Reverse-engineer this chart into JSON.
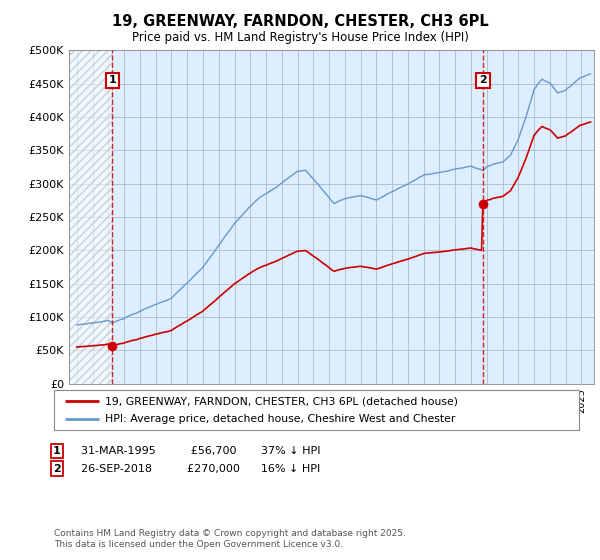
{
  "title": "19, GREENWAY, FARNDON, CHESTER, CH3 6PL",
  "subtitle": "Price paid vs. HM Land Registry's House Price Index (HPI)",
  "ylim": [
    0,
    500000
  ],
  "yticks": [
    0,
    50000,
    100000,
    150000,
    200000,
    250000,
    300000,
    350000,
    400000,
    450000,
    500000
  ],
  "ytick_labels": [
    "£0",
    "£50K",
    "£100K",
    "£150K",
    "£200K",
    "£250K",
    "£300K",
    "£350K",
    "£400K",
    "£450K",
    "£500K"
  ],
  "xlim_start": 1992.5,
  "xlim_end": 2025.8,
  "sale1_year": 1995.25,
  "sale1_price": 56700,
  "sale2_year": 2018.75,
  "sale2_price": 270000,
  "red_color": "#cc0000",
  "blue_color": "#6699cc",
  "bg_color": "#ddeeff",
  "grid_color": "#aabbcc",
  "hatch_color": "#b0b0b0",
  "legend_red": "19, GREENWAY, FARNDON, CHESTER, CH3 6PL (detached house)",
  "legend_blue": "HPI: Average price, detached house, Cheshire West and Chester",
  "sale1_text": "31-MAR-1995          £56,700       37% ↓ HPI",
  "sale2_text": "26-SEP-2018          £270,000      16% ↓ HPI",
  "footer": "Contains HM Land Registry data © Crown copyright and database right 2025.\nThis data is licensed under the Open Government Licence v3.0."
}
